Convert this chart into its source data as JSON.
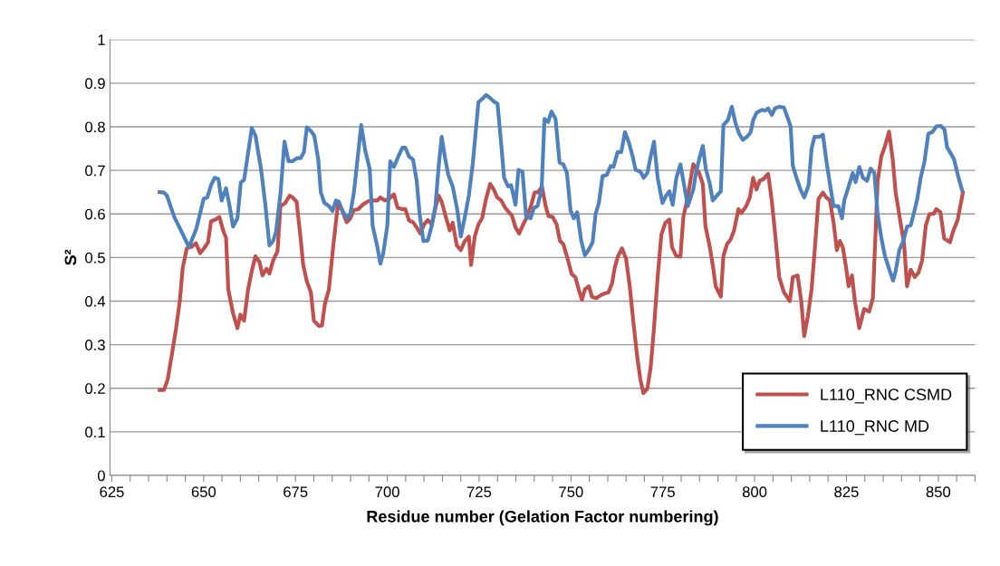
{
  "chart_data": {
    "type": "line",
    "xlabel": "Residue number (Gelation Factor numbering)",
    "ylabel": "S²",
    "xlim": [
      624.5,
      860
    ],
    "ylim": [
      0,
      1
    ],
    "xticks": [
      625,
      {
        "value": 630,
        "label": null
      },
      {
        "value": 635,
        "label": null
      },
      {
        "value": 640,
        "label": null
      },
      {
        "value": 645,
        "label": null
      },
      650,
      {
        "value": 655,
        "label": null
      },
      {
        "value": 660,
        "label": null
      },
      {
        "value": 665,
        "label": null
      },
      {
        "value": 670,
        "label": null
      },
      675,
      {
        "value": 680,
        "label": null
      },
      {
        "value": 685,
        "label": null
      },
      {
        "value": 690,
        "label": null
      },
      {
        "value": 695,
        "label": null
      },
      700,
      {
        "value": 705,
        "label": null
      },
      {
        "value": 710,
        "label": null
      },
      {
        "value": 715,
        "label": null
      },
      {
        "value": 720,
        "label": null
      },
      725,
      {
        "value": 730,
        "label": null
      },
      {
        "value": 735,
        "label": null
      },
      {
        "value": 740,
        "label": null
      },
      {
        "value": 745,
        "label": null
      },
      750,
      {
        "value": 755,
        "label": null
      },
      {
        "value": 760,
        "label": null
      },
      {
        "value": 765,
        "label": null
      },
      {
        "value": 770,
        "label": null
      },
      775,
      {
        "value": 780,
        "label": null
      },
      {
        "value": 785,
        "label": null
      },
      {
        "value": 790,
        "label": null
      },
      {
        "value": 795,
        "label": null
      },
      800,
      {
        "value": 805,
        "label": null
      },
      {
        "value": 810,
        "label": null
      },
      {
        "value": 815,
        "label": null
      },
      {
        "value": 820,
        "label": null
      },
      825,
      {
        "value": 830,
        "label": null
      },
      {
        "value": 835,
        "label": null
      },
      {
        "value": 840,
        "label": null
      },
      {
        "value": 845,
        "label": null
      },
      850,
      {
        "value": 855,
        "label": null
      },
      {
        "value": 860,
        "label": null
      }
    ],
    "yticks": [
      0,
      0.1,
      0.2,
      0.3,
      0.4,
      0.5,
      0.6,
      0.7,
      0.8,
      0.9,
      1
    ],
    "grid": "y",
    "legend": "bottom right",
    "marker": "none",
    "line_style": "solid",
    "series": [
      {
        "name": "L110_RNC CSMD",
        "color": "#c0504d",
        "x": [
          638.0,
          639.2,
          640.2,
          641.3,
          642.5,
          643.5,
          644.3,
          645.4,
          646.6,
          647.9,
          649.0,
          650.1,
          651.2,
          652.0,
          653.2,
          654.3,
          655.3,
          656.1,
          656.7,
          658.0,
          659.2,
          660.0,
          661.0,
          662.1,
          663.1,
          664.1,
          665.2,
          666.0,
          667.1,
          667.9,
          668.9,
          670.1,
          670.9,
          672.2,
          673.4,
          674.2,
          675.3,
          676.3,
          677.1,
          678.1,
          679.2,
          680.0,
          681.4,
          682.2,
          683.0,
          684.1,
          685.3,
          686.6,
          687.8,
          688.9,
          689.8,
          690.9,
          692.1,
          693.4,
          694.8,
          696.0,
          697.3,
          698.1,
          699.3,
          700.5,
          701.8,
          702.8,
          704.1,
          704.9,
          705.9,
          707.0,
          708.0,
          709.0,
          710.0,
          711.0,
          712.1,
          713.1,
          714.0,
          714.8,
          715.8,
          717.0,
          717.8,
          718.9,
          720.0,
          721.1,
          722.2,
          722.8,
          723.8,
          724.8,
          725.8,
          726.9,
          728.0,
          729.0,
          729.9,
          731.0,
          732.1,
          733.1,
          733.9,
          734.9,
          735.9,
          737.0,
          738.0,
          739.2,
          740.1,
          741.1,
          742.1,
          743.1,
          743.9,
          745.0,
          746.1,
          747.0,
          747.9,
          749.1,
          750.2,
          751.2,
          752.1,
          753.0,
          753.8,
          754.9,
          755.7,
          756.9,
          758.2,
          759.0,
          760.2,
          761.2,
          761.9,
          762.8,
          763.9,
          765.0,
          766.0,
          767.0,
          768.0,
          768.9,
          769.7,
          770.8,
          771.7,
          772.6,
          773.6,
          774.6,
          775.7,
          776.8,
          777.5,
          778.7,
          779.8,
          780.6,
          781.6,
          783.3,
          784.9,
          785.9,
          786.6,
          787.8,
          788.6,
          789.4,
          790.8,
          791.5,
          792.5,
          793.5,
          794.4,
          795.6,
          796.4,
          797.7,
          798.7,
          799.6,
          800.5,
          801.4,
          802.4,
          803.7,
          804.7,
          805.7,
          806.7,
          808.0,
          809.6,
          810.4,
          811.7,
          812.7,
          813.5,
          814.5,
          815.5,
          816.3,
          817.4,
          818.6,
          819.5,
          820.5,
          821.5,
          822.4,
          823.2,
          824.0,
          824.8,
          825.6,
          826.5,
          827.3,
          828.5,
          829.8,
          831.2,
          832.2,
          833.5,
          834.5,
          835.5,
          836.6,
          837.6,
          838.4,
          839.6,
          840.7,
          841.5,
          842.5,
          843.6,
          844.6,
          845.6,
          846.6,
          847.6,
          848.7,
          849.5,
          850.6,
          851.6,
          853.2,
          854.0,
          855.3,
          856.7
        ],
        "values": [
          0.196,
          0.196,
          0.22,
          0.275,
          0.338,
          0.4,
          0.476,
          0.521,
          0.524,
          0.533,
          0.51,
          0.521,
          0.535,
          0.583,
          0.587,
          0.593,
          0.562,
          0.545,
          0.427,
          0.372,
          0.338,
          0.369,
          0.355,
          0.427,
          0.469,
          0.503,
          0.49,
          0.459,
          0.474,
          0.463,
          0.493,
          0.514,
          0.618,
          0.625,
          0.642,
          0.638,
          0.628,
          0.552,
          0.483,
          0.445,
          0.42,
          0.355,
          0.343,
          0.344,
          0.393,
          0.427,
          0.528,
          0.625,
          0.607,
          0.581,
          0.588,
          0.609,
          0.611,
          0.622,
          0.629,
          0.631,
          0.631,
          0.638,
          0.631,
          0.635,
          0.645,
          0.614,
          0.611,
          0.611,
          0.585,
          0.581,
          0.569,
          0.555,
          0.576,
          0.586,
          0.576,
          0.614,
          0.642,
          0.628,
          0.597,
          0.562,
          0.58,
          0.528,
          0.517,
          0.538,
          0.548,
          0.483,
          0.548,
          0.576,
          0.59,
          0.635,
          0.669,
          0.656,
          0.638,
          0.631,
          0.614,
          0.604,
          0.597,
          0.569,
          0.555,
          0.576,
          0.593,
          0.621,
          0.649,
          0.65,
          0.663,
          0.618,
          0.595,
          0.593,
          0.576,
          0.538,
          0.531,
          0.497,
          0.462,
          0.455,
          0.427,
          0.403,
          0.427,
          0.434,
          0.41,
          0.407,
          0.414,
          0.417,
          0.42,
          0.441,
          0.476,
          0.503,
          0.521,
          0.497,
          0.434,
          0.351,
          0.275,
          0.22,
          0.189,
          0.199,
          0.248,
          0.338,
          0.455,
          0.552,
          0.58,
          0.587,
          0.524,
          0.503,
          0.502,
          0.593,
          0.631,
          0.714,
          0.694,
          0.669,
          0.573,
          0.524,
          0.483,
          0.434,
          0.41,
          0.503,
          0.531,
          0.542,
          0.562,
          0.611,
          0.602,
          0.618,
          0.638,
          0.683,
          0.656,
          0.676,
          0.68,
          0.692,
          0.628,
          0.545,
          0.455,
          0.42,
          0.4,
          0.455,
          0.459,
          0.4,
          0.32,
          0.365,
          0.427,
          0.51,
          0.635,
          0.649,
          0.638,
          0.631,
          0.58,
          0.517,
          0.538,
          0.524,
          0.483,
          0.434,
          0.459,
          0.4,
          0.338,
          0.382,
          0.376,
          0.407,
          0.676,
          0.732,
          0.756,
          0.789,
          0.725,
          0.649,
          0.587,
          0.531,
          0.434,
          0.472,
          0.455,
          0.465,
          0.493,
          0.573,
          0.6,
          0.6,
          0.611,
          0.604,
          0.544,
          0.535,
          0.559,
          0.587,
          0.649
        ]
      },
      {
        "name": "L110_RNC MD",
        "color": "#4f81bd",
        "x": [
          638.0,
          639.2,
          640.0,
          642.0,
          644.0,
          646.0,
          647.0,
          648.0,
          649.0,
          650.0,
          651.0,
          652.0,
          653.0,
          654.0,
          654.9,
          655.5,
          656.1,
          657.0,
          658.0,
          659.2,
          660.1,
          661.0,
          663.1,
          664.1,
          665.6,
          666.8,
          667.9,
          668.9,
          669.7,
          670.9,
          672.0,
          673.1,
          674.2,
          675.4,
          676.4,
          677.3,
          678.1,
          679.2,
          680.1,
          681.2,
          681.9,
          682.9,
          684.1,
          685.1,
          686.0,
          686.8,
          687.8,
          689.0,
          689.9,
          690.9,
          692.9,
          694.0,
          695.2,
          696.0,
          697.3,
          698.1,
          698.9,
          700.0,
          700.8,
          701.8,
          703.0,
          704.1,
          704.9,
          705.9,
          707.0,
          708.0,
          708.8,
          709.8,
          711.0,
          712.1,
          713.1,
          714.0,
          714.8,
          715.8,
          716.6,
          717.8,
          719.1,
          720.0,
          721.1,
          722.2,
          723.3,
          724.8,
          726.1,
          726.9,
          728.0,
          729.0,
          730.0,
          730.8,
          731.8,
          732.9,
          733.7,
          734.9,
          735.7,
          736.8,
          737.8,
          739.0,
          739.9,
          740.9,
          742.0,
          742.8,
          743.8,
          744.7,
          745.8,
          746.9,
          747.9,
          748.9,
          749.9,
          750.8,
          751.7,
          752.8,
          753.8,
          754.9,
          755.9,
          756.7,
          757.6,
          758.6,
          759.8,
          760.8,
          761.6,
          762.7,
          763.7,
          764.7,
          765.8,
          766.8,
          767.6,
          768.9,
          769.8,
          770.8,
          771.6,
          772.6,
          773.6,
          774.9,
          775.9,
          776.8,
          777.7,
          778.7,
          779.8,
          780.8,
          781.8,
          783.3,
          784.1,
          785.1,
          785.9,
          786.7,
          787.8,
          788.6,
          789.7,
          790.8,
          791.5,
          792.7,
          793.8,
          794.8,
          795.8,
          796.8,
          797.9,
          798.9,
          799.6,
          800.5,
          802.0,
          802.9,
          803.7,
          804.7,
          805.5,
          806.7,
          808.0,
          808.8,
          809.8,
          810.4,
          811.4,
          812.5,
          813.5,
          814.7,
          815.5,
          816.3,
          817.7,
          818.6,
          819.6,
          820.7,
          821.5,
          822.8,
          823.8,
          824.4,
          825.6,
          826.7,
          827.5,
          828.5,
          829.5,
          830.6,
          831.6,
          832.6,
          833.5,
          834.5,
          835.5,
          836.8,
          837.7,
          838.4,
          839.4,
          840.5,
          841.5,
          842.5,
          843.3,
          844.3,
          845.2,
          846.2,
          847.3,
          848.4,
          849.5,
          850.7,
          851.7,
          852.4,
          853.4,
          854.3,
          855.3,
          856.5
        ],
        "values": [
          0.65,
          0.649,
          0.642,
          0.593,
          0.559,
          0.524,
          0.545,
          0.566,
          0.6,
          0.635,
          0.638,
          0.666,
          0.683,
          0.68,
          0.631,
          0.645,
          0.659,
          0.621,
          0.571,
          0.59,
          0.672,
          0.678,
          0.797,
          0.78,
          0.704,
          0.621,
          0.528,
          0.538,
          0.559,
          0.645,
          0.766,
          0.721,
          0.721,
          0.728,
          0.728,
          0.742,
          0.799,
          0.79,
          0.78,
          0.725,
          0.649,
          0.625,
          0.618,
          0.607,
          0.631,
          0.628,
          0.607,
          0.59,
          0.6,
          0.649,
          0.804,
          0.745,
          0.704,
          0.573,
          0.524,
          0.486,
          0.51,
          0.573,
          0.721,
          0.708,
          0.732,
          0.752,
          0.752,
          0.732,
          0.725,
          0.676,
          0.6,
          0.538,
          0.539,
          0.573,
          0.618,
          0.711,
          0.777,
          0.725,
          0.69,
          0.663,
          0.607,
          0.548,
          0.593,
          0.642,
          0.718,
          0.856,
          0.866,
          0.873,
          0.866,
          0.858,
          0.853,
          0.78,
          0.683,
          0.663,
          0.666,
          0.621,
          0.701,
          0.697,
          0.593,
          0.59,
          0.614,
          0.618,
          0.656,
          0.818,
          0.811,
          0.835,
          0.818,
          0.718,
          0.714,
          0.694,
          0.607,
          0.59,
          0.604,
          0.538,
          0.505,
          0.519,
          0.535,
          0.6,
          0.625,
          0.687,
          0.69,
          0.71,
          0.708,
          0.742,
          0.742,
          0.788,
          0.763,
          0.732,
          0.701,
          0.697,
          0.683,
          0.694,
          0.728,
          0.766,
          0.683,
          0.625,
          0.642,
          0.652,
          0.621,
          0.683,
          0.714,
          0.666,
          0.618,
          0.656,
          0.697,
          0.732,
          0.756,
          0.704,
          0.669,
          0.631,
          0.642,
          0.652,
          0.804,
          0.815,
          0.846,
          0.808,
          0.784,
          0.77,
          0.777,
          0.787,
          0.815,
          0.832,
          0.839,
          0.837,
          0.842,
          0.827,
          0.842,
          0.846,
          0.844,
          0.825,
          0.801,
          0.711,
          0.683,
          0.656,
          0.638,
          0.666,
          0.749,
          0.777,
          0.777,
          0.782,
          0.718,
          0.659,
          0.618,
          0.618,
          0.59,
          0.631,
          0.663,
          0.694,
          0.673,
          0.708,
          0.683,
          0.676,
          0.704,
          0.694,
          0.6,
          0.545,
          0.503,
          0.469,
          0.447,
          0.469,
          0.517,
          0.538,
          0.571,
          0.574,
          0.6,
          0.635,
          0.683,
          0.718,
          0.784,
          0.788,
          0.801,
          0.802,
          0.794,
          0.753,
          0.739,
          0.725,
          0.69,
          0.654
        ]
      }
    ]
  }
}
